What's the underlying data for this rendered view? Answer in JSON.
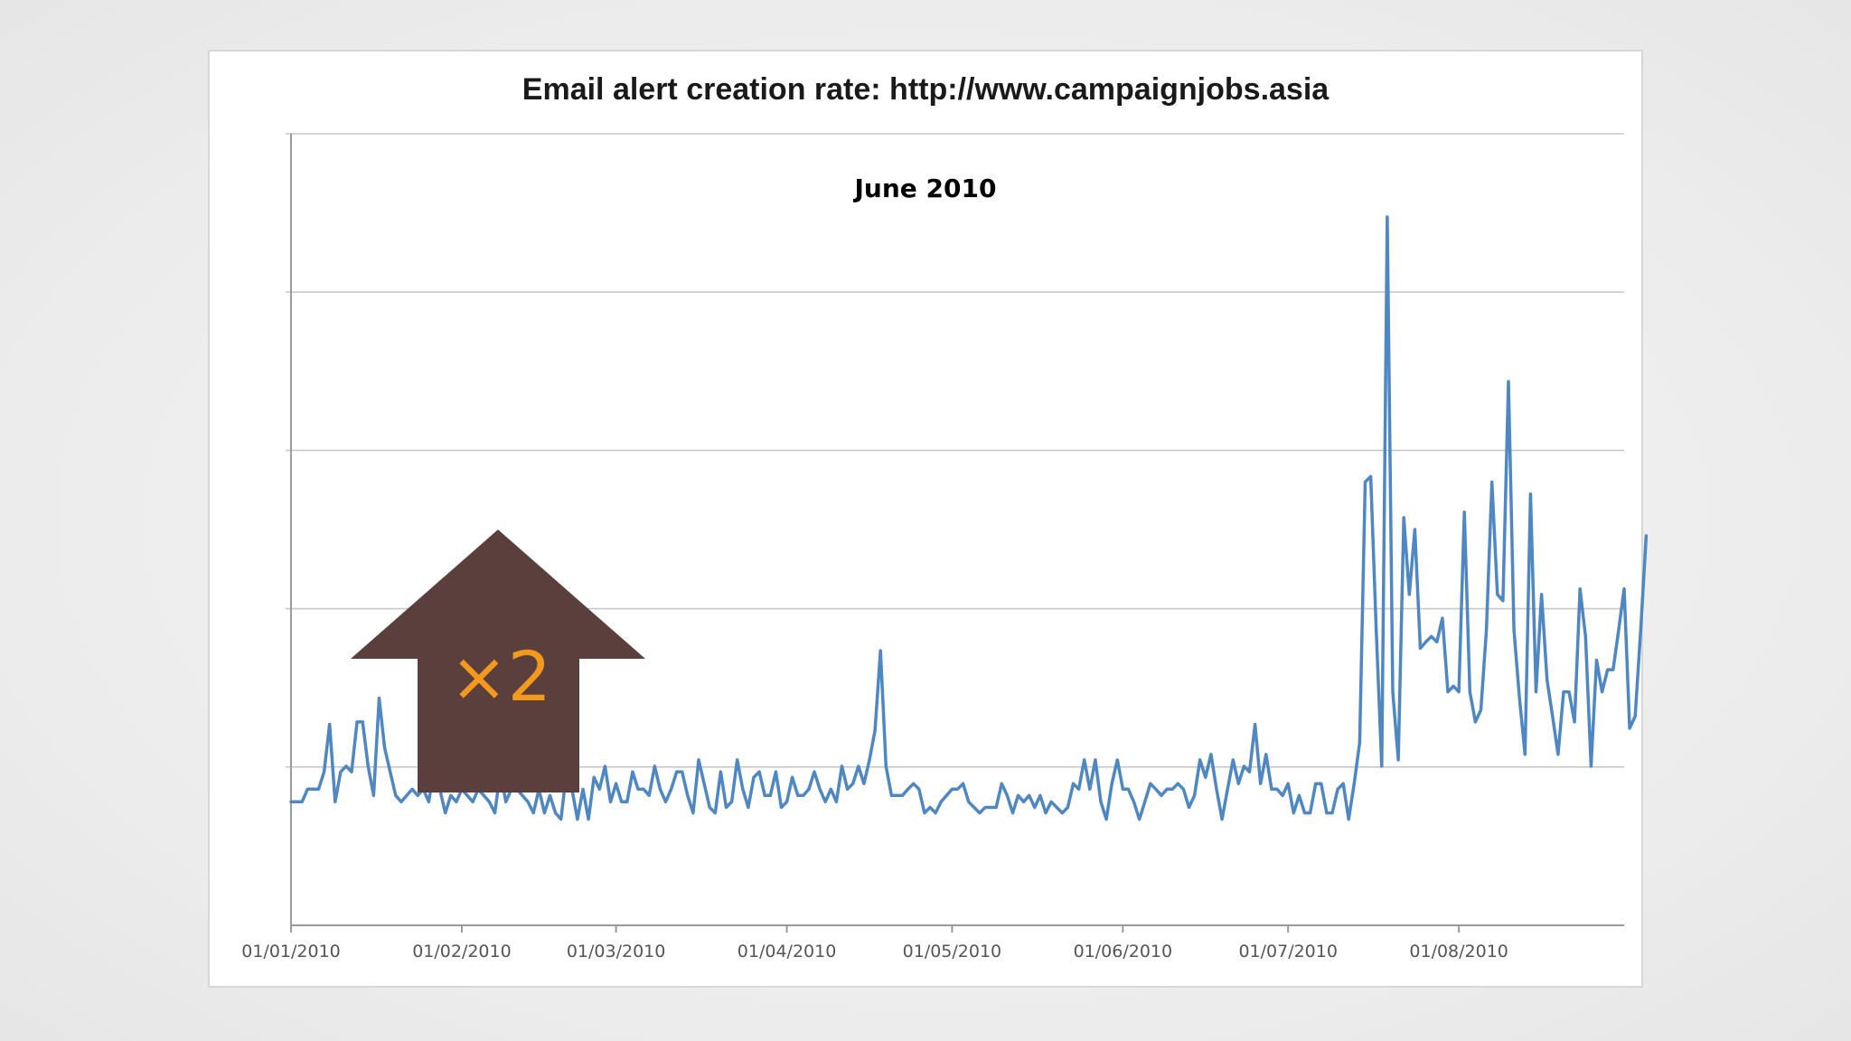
{
  "slide": {
    "background": "#efefef"
  },
  "overlay": {
    "label": "×2",
    "arrow_color": "#5a3f3c",
    "text_color": "#f39a1e",
    "icon": "up-arrow-icon"
  },
  "chart_data": {
    "type": "line",
    "title": "Email alert creation rate: http://www.campaignjobs.asia",
    "annotation": "June 2010",
    "xlabel": "",
    "ylabel": "",
    "grid": true,
    "y_tick_labels_shown": false,
    "ylim": [
      0,
      100
    ],
    "line_color": "#4f87c2",
    "x_tick_labels": [
      "01/01/2010",
      "01/02/2010",
      "01/03/2010",
      "01/04/2010",
      "01/05/2010",
      "01/06/2010",
      "01/07/2010",
      "01/08/2010"
    ],
    "x_tick_days": [
      0,
      31,
      59,
      90,
      120,
      151,
      181,
      212
    ],
    "x_range_days": [
      0,
      242
    ],
    "series": [
      {
        "values": [
          15.6,
          15.6,
          15.6,
          17.2,
          17.2,
          17.2,
          19.4,
          25.4,
          15.6,
          19.4,
          20.1,
          19.4,
          25.7,
          25.7,
          20.1,
          16.4,
          28.7,
          22.4,
          19.4,
          16.4,
          15.6,
          16.4,
          17.2,
          16.4,
          17.2,
          15.6,
          20.1,
          17.2,
          14.2,
          16.4,
          15.6,
          17.2,
          16.4,
          15.6,
          17.2,
          16.4,
          15.6,
          14.2,
          19.4,
          15.6,
          17.2,
          17.2,
          16.4,
          15.6,
          14.2,
          17.2,
          14.2,
          16.4,
          14.2,
          13.4,
          19.4,
          17.2,
          13.4,
          17.2,
          13.4,
          18.7,
          17.2,
          20.1,
          15.6,
          17.9,
          15.6,
          15.6,
          19.4,
          17.2,
          17.2,
          16.4,
          20.1,
          17.2,
          15.6,
          17.2,
          19.4,
          19.4,
          16.4,
          14.2,
          20.9,
          17.9,
          14.9,
          14.2,
          19.4,
          14.9,
          15.6,
          20.9,
          17.2,
          14.9,
          18.7,
          19.4,
          16.4,
          16.4,
          19.4,
          14.9,
          15.6,
          18.7,
          16.4,
          16.4,
          17.2,
          19.4,
          17.2,
          15.6,
          17.2,
          15.6,
          20.1,
          17.2,
          17.9,
          20.1,
          17.9,
          20.9,
          24.6,
          34.7,
          20.1,
          16.4,
          16.4,
          16.4,
          17.2,
          17.9,
          17.2,
          14.2,
          14.9,
          14.2,
          15.6,
          16.4,
          17.2,
          17.2,
          17.9,
          15.6,
          14.9,
          14.2,
          14.9,
          14.9,
          14.9,
          17.9,
          16.4,
          14.2,
          16.4,
          15.6,
          16.4,
          14.9,
          16.4,
          14.2,
          15.6,
          14.9,
          14.2,
          14.9,
          17.9,
          17.2,
          20.9,
          17.2,
          20.9,
          15.6,
          13.4,
          17.9,
          20.9,
          17.2,
          17.2,
          15.6,
          13.4,
          15.6,
          17.9,
          17.2,
          16.4,
          17.2,
          17.2,
          17.9,
          17.2,
          14.9,
          16.4,
          20.9,
          18.7,
          21.6,
          17.2,
          13.4,
          17.2,
          20.9,
          17.9,
          20.1,
          19.4,
          25.4,
          17.9,
          21.6,
          17.2,
          17.2,
          16.4,
          17.9,
          14.2,
          16.4,
          14.2,
          14.2,
          17.9,
          17.9,
          14.2,
          14.2,
          17.2,
          17.9,
          13.4,
          17.9,
          23.1,
          56.0,
          56.7,
          37.3,
          20.1,
          89.5,
          29.5,
          20.9,
          51.5,
          41.8,
          50.0,
          35.0,
          35.8,
          36.5,
          35.8,
          38.8,
          29.5,
          30.2,
          29.5,
          52.2,
          29.5,
          25.7,
          27.2,
          37.3,
          56.0,
          41.8,
          41.0,
          68.7,
          37.3,
          28.7,
          21.6,
          54.5,
          29.5,
          41.8,
          31.0,
          26.4,
          21.6,
          29.5,
          29.5,
          25.7,
          42.5,
          36.5,
          20.1,
          33.5,
          29.5,
          32.3,
          32.3,
          37.3,
          42.5,
          24.9,
          26.4,
          37.3,
          49.2
        ]
      }
    ]
  }
}
